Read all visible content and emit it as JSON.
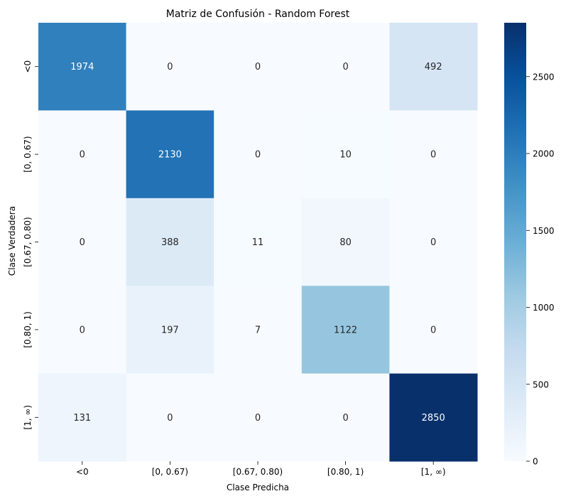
{
  "chart_data": {
    "type": "heatmap",
    "title": "Matriz de Confusión - Random Forest",
    "xlabel": "Clase Predicha",
    "ylabel": "Clase Verdadera",
    "x_categories": [
      "<0",
      "[0, 0.67)",
      "[0.67, 0.80)",
      "[0.80, 1)",
      "[1, ∞)"
    ],
    "y_categories": [
      "<0",
      "[0, 0.67)",
      "[0.67, 0.80)",
      "[0.80, 1)",
      "[1, ∞)"
    ],
    "values": [
      [
        1974,
        0,
        0,
        0,
        492
      ],
      [
        0,
        2130,
        0,
        10,
        0
      ],
      [
        0,
        388,
        11,
        80,
        0
      ],
      [
        0,
        197,
        7,
        1122,
        0
      ],
      [
        131,
        0,
        0,
        0,
        2850
      ]
    ],
    "colormap": "Blues",
    "colorbar": {
      "min": 0,
      "max": 2850,
      "ticks": [
        0,
        500,
        1000,
        1500,
        2000,
        2500
      ]
    }
  }
}
